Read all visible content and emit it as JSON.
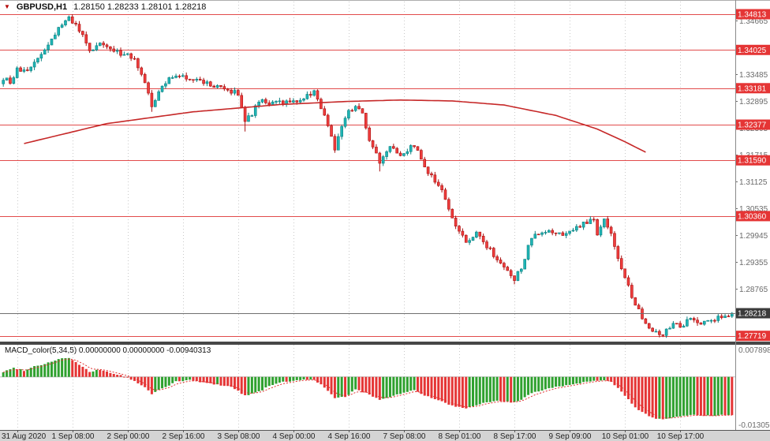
{
  "header": {
    "marker_icon": "▼",
    "symbol": "GBPUSD,H1",
    "ohlc": "1.28150 1.28233 1.28101 1.28218"
  },
  "colors": {
    "up_fill": "#1fb5b5",
    "up_stroke": "#0b8181",
    "down_fill": "#ef3d3d",
    "down_stroke": "#a81111",
    "level_line": "#e24b4b",
    "level_badge": "#e53535",
    "bid_badge": "#3b3b3b",
    "bid_line": "#6f6f6f",
    "macd_up": "#2fa12f",
    "macd_down": "#e53535",
    "ma_line": "#c62828",
    "grid": "#c9c9c9",
    "axis_text": "#6b6b6b",
    "time_strip": "#d4d4d4",
    "separator": "#474747"
  },
  "price_axis": {
    "gray_labels": [
      "1.34665",
      "1.34075",
      "1.33485",
      "1.32895",
      "1.32305",
      "1.31715",
      "1.31125",
      "1.30535",
      "1.29945",
      "1.29355",
      "1.28765",
      "1.28175"
    ],
    "level_labels": [
      "1.34813",
      "1.34025",
      "1.33181",
      "1.32377",
      "1.31590",
      "1.30360",
      "1.27719"
    ],
    "bid_label": "1.28218"
  },
  "time_axis": {
    "labels": [
      "31 Aug 2020",
      "1 Sep 08:00",
      "2 Sep 00:00",
      "2 Sep 16:00",
      "3 Sep 08:00",
      "4 Sep 00:00",
      "4 Sep 16:00",
      "7 Sep 08:00",
      "8 Sep 01:00",
      "8 Sep 17:00",
      "9 Sep 09:00",
      "10 Sep 01:00",
      "10 Sep 17:00"
    ],
    "first_bar": 4,
    "bar_step": 16
  },
  "macd": {
    "title_line": "MACD_color(5,34,5) 0.00000000 0.00000000 -0.00940313",
    "axis_max_label": "0.0078989",
    "axis_min_label": "-0.0130505"
  },
  "chart_data": {
    "type": "candlestick",
    "symbol": "GBPUSD",
    "timeframe": "H1",
    "title": "GBPUSD,H1",
    "ylim": [
      1.27592,
      1.35126
    ],
    "n_bars": 212,
    "bid": 1.28218,
    "levels": [
      1.34813,
      1.34025,
      1.33181,
      1.32377,
      1.3159,
      1.3036,
      1.27719
    ],
    "close_keyframes": [
      [
        0,
        1.334
      ],
      [
        2,
        1.3332
      ],
      [
        4,
        1.3358
      ],
      [
        7,
        1.3352
      ],
      [
        10,
        1.3386
      ],
      [
        13,
        1.3412
      ],
      [
        16,
        1.345
      ],
      [
        19,
        1.3472
      ],
      [
        21,
        1.3455
      ],
      [
        23,
        1.3433
      ],
      [
        25,
        1.34
      ],
      [
        27,
        1.341
      ],
      [
        29,
        1.3416
      ],
      [
        31,
        1.3402
      ],
      [
        33,
        1.3398
      ],
      [
        36,
        1.339
      ],
      [
        38,
        1.3386
      ],
      [
        41,
        1.333
      ],
      [
        43,
        1.3277
      ],
      [
        45,
        1.3308
      ],
      [
        47,
        1.333
      ],
      [
        50,
        1.335
      ],
      [
        53,
        1.3342
      ],
      [
        56,
        1.3338
      ],
      [
        60,
        1.3325
      ],
      [
        64,
        1.3315
      ],
      [
        68,
        1.3307
      ],
      [
        70,
        1.3246
      ],
      [
        72,
        1.3262
      ],
      [
        74,
        1.329
      ],
      [
        78,
        1.3283
      ],
      [
        82,
        1.3288
      ],
      [
        86,
        1.3293
      ],
      [
        90,
        1.331
      ],
      [
        93,
        1.3256
      ],
      [
        96,
        1.3186
      ],
      [
        99,
        1.3256
      ],
      [
        102,
        1.3282
      ],
      [
        104,
        1.326
      ],
      [
        106,
        1.3202
      ],
      [
        109,
        1.3156
      ],
      [
        112,
        1.3186
      ],
      [
        115,
        1.3172
      ],
      [
        119,
        1.3192
      ],
      [
        123,
        1.3131
      ],
      [
        127,
        1.3096
      ],
      [
        130,
        1.3031
      ],
      [
        134,
        1.2976
      ],
      [
        137,
        1.2996
      ],
      [
        141,
        1.2961
      ],
      [
        144,
        1.2931
      ],
      [
        148,
        1.2896
      ],
      [
        150,
        1.2922
      ],
      [
        153,
        1.299
      ],
      [
        158,
        1.3001
      ],
      [
        163,
        1.2996
      ],
      [
        167,
        1.3016
      ],
      [
        171,
        1.3031
      ],
      [
        172,
        1.2992
      ],
      [
        174,
        1.3026
      ],
      [
        176,
        1.2996
      ],
      [
        179,
        1.2921
      ],
      [
        181,
        1.2881
      ],
      [
        183,
        1.2841
      ],
      [
        186,
        1.2801
      ],
      [
        188,
        1.2786
      ],
      [
        191,
        1.2776
      ],
      [
        194,
        1.2801
      ],
      [
        196,
        1.2791
      ],
      [
        199,
        1.2811
      ],
      [
        202,
        1.2801
      ],
      [
        205,
        1.2806
      ],
      [
        208,
        1.2816
      ],
      [
        211,
        1.28218
      ]
    ],
    "extremes": [
      {
        "i": 20,
        "high": 1.34813
      },
      {
        "i": 43,
        "low": 1.3266
      },
      {
        "i": 70,
        "low": 1.32225
      },
      {
        "i": 96,
        "low": 1.31755
      },
      {
        "i": 109,
        "low": 1.31345
      },
      {
        "i": 148,
        "low": 1.28855
      },
      {
        "i": 191,
        "low": 1.27725
      }
    ],
    "ma_keyframes": [
      [
        6,
        1.3196
      ],
      [
        30,
        1.324
      ],
      [
        55,
        1.3266
      ],
      [
        80,
        1.3282
      ],
      [
        100,
        1.3289
      ],
      [
        115,
        1.3292
      ],
      [
        130,
        1.329
      ],
      [
        145,
        1.3281
      ],
      [
        160,
        1.3258
      ],
      [
        172,
        1.3228
      ],
      [
        180,
        1.32
      ],
      [
        186,
        1.3177
      ]
    ],
    "macd": {
      "type": "bar",
      "ylim": [
        -0.0130505,
        0.0078989
      ],
      "current": -0.00940313,
      "hist_keyframes": [
        [
          0,
          0.0012
        ],
        [
          3,
          0.0022
        ],
        [
          6,
          0.0016
        ],
        [
          9,
          0.0026
        ],
        [
          12,
          0.0032
        ],
        [
          16,
          0.0044
        ],
        [
          19,
          0.0047
        ],
        [
          22,
          0.003
        ],
        [
          25,
          0.0012
        ],
        [
          28,
          0.0018
        ],
        [
          31,
          0.001
        ],
        [
          34,
          0.0004
        ],
        [
          37,
          -0.0006
        ],
        [
          41,
          -0.0026
        ],
        [
          43,
          -0.0042
        ],
        [
          46,
          -0.0028
        ],
        [
          50,
          -0.0012
        ],
        [
          54,
          -0.0008
        ],
        [
          58,
          -0.0014
        ],
        [
          62,
          -0.0019
        ],
        [
          66,
          -0.0024
        ],
        [
          70,
          -0.0046
        ],
        [
          74,
          -0.0036
        ],
        [
          78,
          -0.0019
        ],
        [
          82,
          -0.0011
        ],
        [
          86,
          -0.0008
        ],
        [
          90,
          -0.0006
        ],
        [
          93,
          -0.0026
        ],
        [
          96,
          -0.0053
        ],
        [
          99,
          -0.0049
        ],
        [
          102,
          -0.0031
        ],
        [
          106,
          -0.0043
        ],
        [
          109,
          -0.0056
        ],
        [
          112,
          -0.0049
        ],
        [
          115,
          -0.0041
        ],
        [
          119,
          -0.0033
        ],
        [
          123,
          -0.0049
        ],
        [
          127,
          -0.0061
        ],
        [
          130,
          -0.0071
        ],
        [
          134,
          -0.0079
        ],
        [
          137,
          -0.0069
        ],
        [
          141,
          -0.0061
        ],
        [
          144,
          -0.0059
        ],
        [
          148,
          -0.0063
        ],
        [
          150,
          -0.0056
        ],
        [
          153,
          -0.0041
        ],
        [
          158,
          -0.0027
        ],
        [
          163,
          -0.0021
        ],
        [
          167,
          -0.0015
        ],
        [
          171,
          -0.0009
        ],
        [
          174,
          -0.0007
        ],
        [
          176,
          -0.0013
        ],
        [
          179,
          -0.0036
        ],
        [
          181,
          -0.0056
        ],
        [
          183,
          -0.0076
        ],
        [
          186,
          -0.0091
        ],
        [
          188,
          -0.01
        ],
        [
          191,
          -0.0105
        ],
        [
          194,
          -0.0099
        ],
        [
          197,
          -0.0096
        ],
        [
          200,
          -0.0094
        ],
        [
          203,
          -0.0096
        ],
        [
          206,
          -0.0095
        ],
        [
          209,
          -0.0094
        ],
        [
          211,
          -0.00940313
        ]
      ]
    }
  }
}
